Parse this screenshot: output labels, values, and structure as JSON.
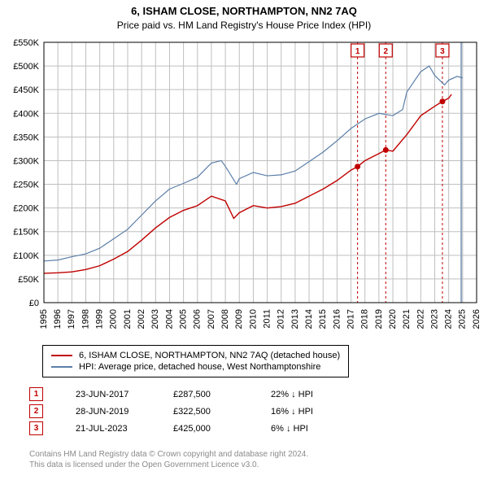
{
  "title": "6, ISHAM CLOSE, NORTHAMPTON, NN2 7AQ",
  "subtitle": "Price paid vs. HM Land Registry's House Price Index (HPI)",
  "chart": {
    "type": "line",
    "background_color": "#ffffff",
    "grid_color": "#bfbfbf",
    "axis_color": "#000000",
    "title_fontsize": 13,
    "label_fontsize": 11,
    "x_years": [
      1995,
      1996,
      1997,
      1998,
      1999,
      2000,
      2001,
      2002,
      2003,
      2004,
      2005,
      2006,
      2007,
      2008,
      2009,
      2010,
      2011,
      2012,
      2013,
      2014,
      2015,
      2016,
      2017,
      2018,
      2019,
      2020,
      2021,
      2022,
      2023,
      2024,
      2025,
      2026
    ],
    "xlim": [
      1995,
      2026
    ],
    "ylim": [
      0,
      550000
    ],
    "ytick_step": 50000,
    "ytick_labels": [
      "£0",
      "£50K",
      "£100K",
      "£150K",
      "£200K",
      "£250K",
      "£300K",
      "£350K",
      "£400K",
      "£450K",
      "£500K",
      "£550K"
    ],
    "series": [
      {
        "name": "price_paid",
        "label": "6, ISHAM CLOSE, NORTHAMPTON, NN2 7AQ (detached house)",
        "color": "#c00000",
        "line_width": 1.4,
        "points": [
          [
            1995,
            62000
          ],
          [
            1996,
            63000
          ],
          [
            1997,
            65000
          ],
          [
            1998,
            70000
          ],
          [
            1999,
            78000
          ],
          [
            2000,
            92000
          ],
          [
            2001,
            108000
          ],
          [
            2002,
            132000
          ],
          [
            2003,
            158000
          ],
          [
            2004,
            180000
          ],
          [
            2005,
            195000
          ],
          [
            2006,
            205000
          ],
          [
            2007,
            225000
          ],
          [
            2008,
            215000
          ],
          [
            2008.6,
            178000
          ],
          [
            2009,
            190000
          ],
          [
            2010,
            205000
          ],
          [
            2011,
            200000
          ],
          [
            2012,
            203000
          ],
          [
            2013,
            210000
          ],
          [
            2014,
            225000
          ],
          [
            2015,
            240000
          ],
          [
            2016,
            258000
          ],
          [
            2017,
            280000
          ],
          [
            2017.47,
            287500
          ],
          [
            2018,
            300000
          ],
          [
            2019,
            315000
          ],
          [
            2019.49,
            322500
          ],
          [
            2020,
            320000
          ],
          [
            2021,
            355000
          ],
          [
            2022,
            395000
          ],
          [
            2023,
            415000
          ],
          [
            2023.55,
            425000
          ],
          [
            2024,
            432000
          ],
          [
            2024.2,
            440000
          ]
        ]
      },
      {
        "name": "hpi",
        "label": "HPI: Average price, detached house, West Northamptonshire",
        "color": "#5b7ea8",
        "line_width": 1.2,
        "points": [
          [
            1995,
            88000
          ],
          [
            1996,
            90000
          ],
          [
            1997,
            97000
          ],
          [
            1998,
            103000
          ],
          [
            1999,
            115000
          ],
          [
            2000,
            135000
          ],
          [
            2001,
            155000
          ],
          [
            2002,
            185000
          ],
          [
            2003,
            215000
          ],
          [
            2004,
            240000
          ],
          [
            2005,
            252000
          ],
          [
            2006,
            265000
          ],
          [
            2007,
            295000
          ],
          [
            2007.7,
            300000
          ],
          [
            2008,
            288000
          ],
          [
            2008.8,
            250000
          ],
          [
            2009,
            262000
          ],
          [
            2010,
            275000
          ],
          [
            2011,
            268000
          ],
          [
            2012,
            270000
          ],
          [
            2013,
            278000
          ],
          [
            2014,
            298000
          ],
          [
            2015,
            318000
          ],
          [
            2016,
            342000
          ],
          [
            2017,
            368000
          ],
          [
            2018,
            388000
          ],
          [
            2019,
            400000
          ],
          [
            2020,
            395000
          ],
          [
            2020.7,
            408000
          ],
          [
            2021,
            445000
          ],
          [
            2022,
            488000
          ],
          [
            2022.6,
            500000
          ],
          [
            2023,
            480000
          ],
          [
            2023.7,
            460000
          ],
          [
            2024,
            470000
          ],
          [
            2024.6,
            478000
          ],
          [
            2025,
            475000
          ]
        ]
      }
    ],
    "event_markers": [
      {
        "n": "1",
        "year": 2017.47,
        "label_x": 2017.47,
        "label_y_top": true,
        "box_color": "#c00000"
      },
      {
        "n": "2",
        "year": 2019.49,
        "label_x": 2019.49,
        "label_y_top": true,
        "box_color": "#c00000"
      },
      {
        "n": "3",
        "year": 2023.55,
        "label_x": 2023.55,
        "label_y_top": true,
        "box_color": "#c00000"
      }
    ],
    "event_marker_line": {
      "color": "#c00000",
      "dash": "3,3",
      "width": 1
    },
    "today_line": {
      "year": 2024.9,
      "color": "#8fa6c4",
      "width": 2
    }
  },
  "legend": {
    "rows": [
      {
        "color": "#c00000",
        "label": "6, ISHAM CLOSE, NORTHAMPTON, NN2 7AQ (detached house)"
      },
      {
        "color": "#5b7ea8",
        "label": "HPI: Average price, detached house, West Northamptonshire"
      }
    ]
  },
  "events": [
    {
      "n": "1",
      "date": "23-JUN-2017",
      "price": "£287,500",
      "diff": "22% ↓ HPI"
    },
    {
      "n": "2",
      "date": "28-JUN-2019",
      "price": "£322,500",
      "diff": "16% ↓ HPI"
    },
    {
      "n": "3",
      "date": "21-JUL-2023",
      "price": "£425,000",
      "diff": "6% ↓ HPI"
    }
  ],
  "attribution": {
    "line1": "Contains HM Land Registry data © Crown copyright and database right 2024.",
    "line2": "This data is licensed under the Open Government Licence v3.0."
  }
}
